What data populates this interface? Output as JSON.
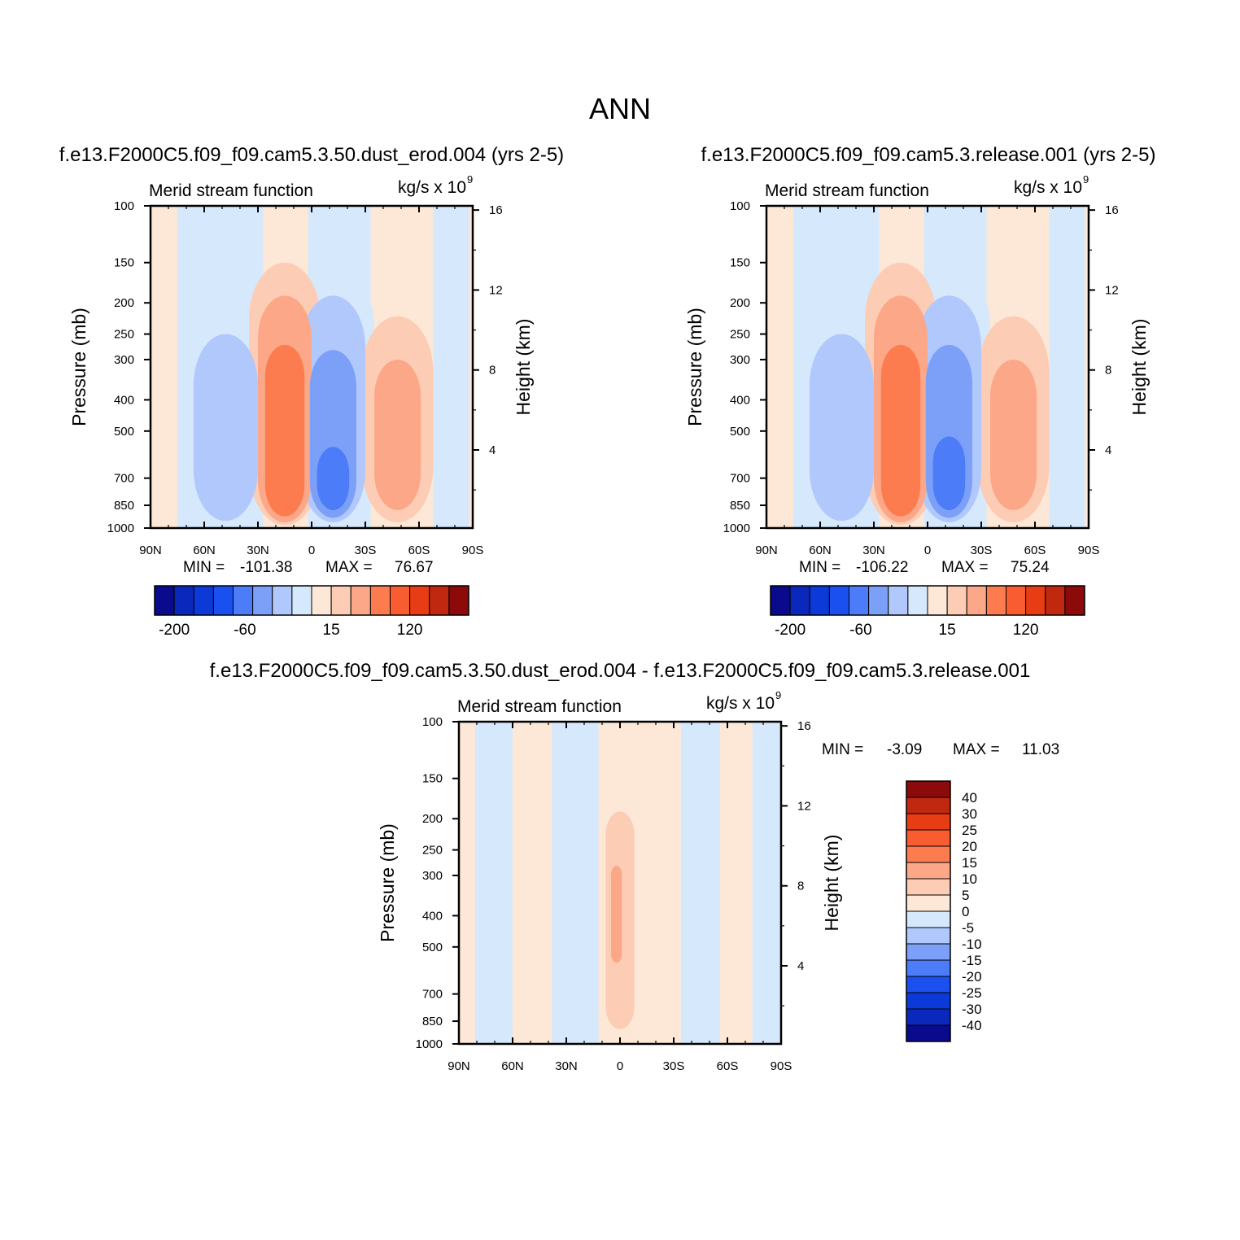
{
  "figure": {
    "title": "ANN"
  },
  "colors": {
    "palette": [
      "#0a0a8c",
      "#0a28bc",
      "#0c3ad8",
      "#1a50f0",
      "#4c7cf8",
      "#7ca0f8",
      "#b0c8fc",
      "#d6e8fc",
      "#fde8d8",
      "#fcccb4",
      "#fca888",
      "#fc7c50",
      "#f85c30",
      "#e83c14",
      "#c02810",
      "#8c0a0a"
    ],
    "background_pos": "#fde8d8",
    "background_neg": "#d6e8fc",
    "axis": "#000000"
  },
  "chart_data": [
    {
      "type": "heatmap",
      "id": "panel_a",
      "case_title": "f.e13.F2000C5.f09_f09.cam5.3.50.dust_erod.004 (yrs 2-5)",
      "left_label": "Merid stream function",
      "units_label": "kg/s x 10",
      "units_exp": "9",
      "ylabel": "Pressure (mb)",
      "ylabel_right": "Height (km)",
      "x_ticks": [
        "90N",
        "60N",
        "30N",
        "0",
        "30S",
        "60S",
        "90S"
      ],
      "xlim": [
        90,
        -90
      ],
      "p_ticks": [
        100,
        150,
        200,
        250,
        300,
        400,
        500,
        700,
        850,
        1000
      ],
      "ylim": [
        100,
        1000
      ],
      "z_ticks": [
        16,
        12,
        8,
        4
      ],
      "min_label": "MIN =",
      "min_value": "-101.38",
      "max_label": "MAX =",
      "max_value": "76.67",
      "cb_labels": [
        "-200",
        "-60",
        "15",
        "120"
      ],
      "features": [
        {
          "kind": "neg",
          "lat": -12,
          "p_top": 280,
          "p_bot": 930,
          "width": 13,
          "level": 5
        },
        {
          "kind": "neg",
          "lat": -12,
          "p_top": 190,
          "p_bot": 960,
          "width": 18,
          "level": 6
        },
        {
          "kind": "neg",
          "lat": -12,
          "p_top": 150,
          "p_bot": 985,
          "width": 23,
          "level": 7
        },
        {
          "kind": "neg",
          "lat": -12,
          "p_top": 560,
          "p_bot": 880,
          "width": 9,
          "level": 4
        },
        {
          "kind": "pos",
          "lat": 15,
          "p_top": 270,
          "p_bot": 920,
          "width": 11,
          "level": 11
        },
        {
          "kind": "pos",
          "lat": 15,
          "p_top": 190,
          "p_bot": 960,
          "width": 15,
          "level": 10
        },
        {
          "kind": "pos",
          "lat": 15,
          "p_top": 150,
          "p_bot": 980,
          "width": 20,
          "level": 9
        },
        {
          "kind": "neg",
          "lat": 48,
          "p_top": 250,
          "p_bot": 950,
          "width": 18,
          "level": 6
        },
        {
          "kind": "pos",
          "lat": -48,
          "p_top": 300,
          "p_bot": 880,
          "width": 13,
          "level": 10
        },
        {
          "kind": "pos",
          "lat": -48,
          "p_top": 220,
          "p_bot": 960,
          "width": 20,
          "level": 9
        }
      ],
      "base_bands": [
        {
          "lat_from": 90,
          "lat_to": 75,
          "kind": "pos"
        },
        {
          "lat_from": 75,
          "lat_to": 27,
          "kind": "neg"
        },
        {
          "lat_from": 27,
          "lat_to": 2,
          "kind": "pos"
        },
        {
          "lat_from": 2,
          "lat_to": -33,
          "kind": "neg"
        },
        {
          "lat_from": -33,
          "lat_to": -68,
          "kind": "pos"
        },
        {
          "lat_from": -68,
          "lat_to": -88,
          "kind": "neg"
        },
        {
          "lat_from": -88,
          "lat_to": -90,
          "kind": "pos"
        }
      ]
    },
    {
      "type": "heatmap",
      "id": "panel_b",
      "case_title": "f.e13.F2000C5.f09_f09.cam5.3.release.001 (yrs 2-5)",
      "left_label": "Merid stream function",
      "units_label": "kg/s x 10",
      "units_exp": "9",
      "ylabel": "Pressure (mb)",
      "ylabel_right": "Height (km)",
      "x_ticks": [
        "90N",
        "60N",
        "30N",
        "0",
        "30S",
        "60S",
        "90S"
      ],
      "xlim": [
        90,
        -90
      ],
      "p_ticks": [
        100,
        150,
        200,
        250,
        300,
        400,
        500,
        700,
        850,
        1000
      ],
      "ylim": [
        100,
        1000
      ],
      "z_ticks": [
        16,
        12,
        8,
        4
      ],
      "min_label": "MIN =",
      "min_value": "-106.22",
      "max_label": "MAX =",
      "max_value": "75.24",
      "cb_labels": [
        "-200",
        "-60",
        "15",
        "120"
      ],
      "features": [
        {
          "kind": "neg",
          "lat": -12,
          "p_top": 270,
          "p_bot": 930,
          "width": 13,
          "level": 5
        },
        {
          "kind": "neg",
          "lat": -12,
          "p_top": 190,
          "p_bot": 960,
          "width": 18,
          "level": 6
        },
        {
          "kind": "neg",
          "lat": -12,
          "p_top": 150,
          "p_bot": 985,
          "width": 23,
          "level": 7
        },
        {
          "kind": "neg",
          "lat": -12,
          "p_top": 520,
          "p_bot": 880,
          "width": 9,
          "level": 4
        },
        {
          "kind": "pos",
          "lat": 15,
          "p_top": 270,
          "p_bot": 920,
          "width": 11,
          "level": 11
        },
        {
          "kind": "pos",
          "lat": 15,
          "p_top": 190,
          "p_bot": 960,
          "width": 15,
          "level": 10
        },
        {
          "kind": "pos",
          "lat": 15,
          "p_top": 150,
          "p_bot": 980,
          "width": 20,
          "level": 9
        },
        {
          "kind": "neg",
          "lat": 48,
          "p_top": 250,
          "p_bot": 950,
          "width": 18,
          "level": 6
        },
        {
          "kind": "pos",
          "lat": -48,
          "p_top": 300,
          "p_bot": 880,
          "width": 13,
          "level": 10
        },
        {
          "kind": "pos",
          "lat": -48,
          "p_top": 220,
          "p_bot": 960,
          "width": 20,
          "level": 9
        }
      ],
      "base_bands": [
        {
          "lat_from": 90,
          "lat_to": 75,
          "kind": "pos"
        },
        {
          "lat_from": 75,
          "lat_to": 27,
          "kind": "neg"
        },
        {
          "lat_from": 27,
          "lat_to": 2,
          "kind": "pos"
        },
        {
          "lat_from": 2,
          "lat_to": -33,
          "kind": "neg"
        },
        {
          "lat_from": -33,
          "lat_to": -68,
          "kind": "pos"
        },
        {
          "lat_from": -68,
          "lat_to": -88,
          "kind": "neg"
        },
        {
          "lat_from": -88,
          "lat_to": -90,
          "kind": "pos"
        }
      ]
    },
    {
      "type": "heatmap",
      "id": "panel_diff",
      "case_title": "f.e13.F2000C5.f09_f09.cam5.3.50.dust_erod.004 - f.e13.F2000C5.f09_f09.cam5.3.release.001",
      "left_label": "Merid stream function",
      "units_label": "kg/s x 10",
      "units_exp": "9",
      "ylabel": "Pressure (mb)",
      "ylabel_right": "Height (km)",
      "x_ticks": [
        "90N",
        "60N",
        "30N",
        "0",
        "30S",
        "60S",
        "90S"
      ],
      "xlim": [
        90,
        -90
      ],
      "p_ticks": [
        100,
        150,
        200,
        250,
        300,
        400,
        500,
        700,
        850,
        1000
      ],
      "ylim": [
        100,
        1000
      ],
      "z_ticks": [
        16,
        12,
        8,
        4
      ],
      "min_label": "MIN =",
      "min_value": "-3.09",
      "max_label": "MAX =",
      "max_value": "11.03",
      "cb_labels": [
        "40",
        "30",
        "25",
        "20",
        "15",
        "10",
        "5",
        "0",
        "-5",
        "-10",
        "-15",
        "-20",
        "-25",
        "-30",
        "-40"
      ],
      "features": [
        {
          "kind": "pos",
          "lat": 0,
          "p_top": 190,
          "p_bot": 900,
          "width": 8,
          "level": 9
        },
        {
          "kind": "pos",
          "lat": 2,
          "p_top": 280,
          "p_bot": 560,
          "width": 3,
          "level": 10
        }
      ],
      "base_bands": [
        {
          "lat_from": 90,
          "lat_to": 81,
          "kind": "pos"
        },
        {
          "lat_from": 81,
          "lat_to": 60,
          "kind": "neg"
        },
        {
          "lat_from": 60,
          "lat_to": 38,
          "kind": "pos"
        },
        {
          "lat_from": 38,
          "lat_to": 12,
          "kind": "neg"
        },
        {
          "lat_from": 12,
          "lat_to": -34,
          "kind": "pos"
        },
        {
          "lat_from": -34,
          "lat_to": -56,
          "kind": "neg"
        },
        {
          "lat_from": -56,
          "lat_to": -74,
          "kind": "pos"
        },
        {
          "lat_from": -74,
          "lat_to": -90,
          "kind": "neg"
        }
      ]
    }
  ]
}
